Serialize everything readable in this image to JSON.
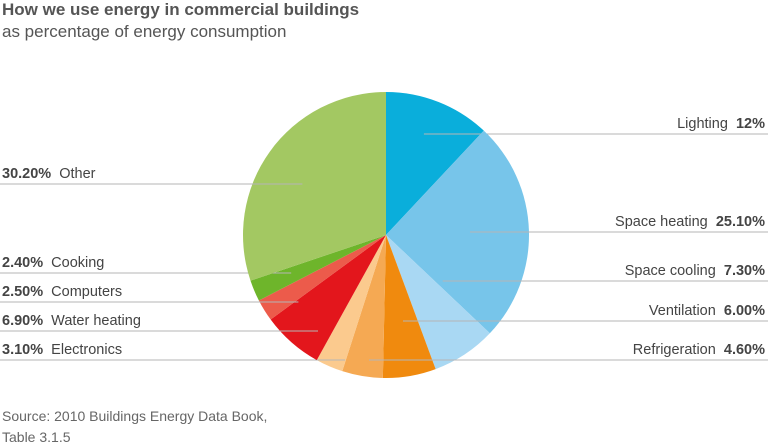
{
  "title": "How we use energy in commercial buildings",
  "subtitle": "as percentage of energy consumption",
  "source_line1": "Source: 2010 Buildings Energy Data Book,",
  "source_line2": "Table 3.1.5",
  "chart_data": {
    "type": "pie",
    "title": "How we use energy in commercial buildings",
    "subtitle": "as percentage of energy consumption",
    "slices": [
      {
        "label": "Lighting",
        "value": 12,
        "display": "12%",
        "color": "#0aaedb",
        "side": "right"
      },
      {
        "label": "Space heating",
        "value": 25.1,
        "display": "25.10%",
        "color": "#77c5ea",
        "side": "right"
      },
      {
        "label": "Space cooling",
        "value": 7.3,
        "display": "7.30%",
        "color": "#a9d8f3",
        "side": "right"
      },
      {
        "label": "Ventilation",
        "value": 6.0,
        "display": "6.00%",
        "color": "#f08a0e",
        "side": "right"
      },
      {
        "label": "Refrigeration",
        "value": 4.6,
        "display": "4.60%",
        "color": "#f5a953",
        "side": "right"
      },
      {
        "label": "Electronics",
        "value": 3.1,
        "display": "3.10%",
        "color": "#fbca8e",
        "side": "left"
      },
      {
        "label": "Water heating",
        "value": 6.9,
        "display": "6.90%",
        "color": "#e3161c",
        "side": "left"
      },
      {
        "label": "Computers",
        "value": 2.5,
        "display": "2.50%",
        "color": "#ec5b4b",
        "side": "left"
      },
      {
        "label": "Cooking",
        "value": 2.4,
        "display": "2.40%",
        "color": "#6eb52b",
        "side": "left"
      },
      {
        "label": "Other",
        "value": 30.2,
        "display": "30.20%",
        "color": "#a3c862",
        "side": "left"
      }
    ]
  }
}
